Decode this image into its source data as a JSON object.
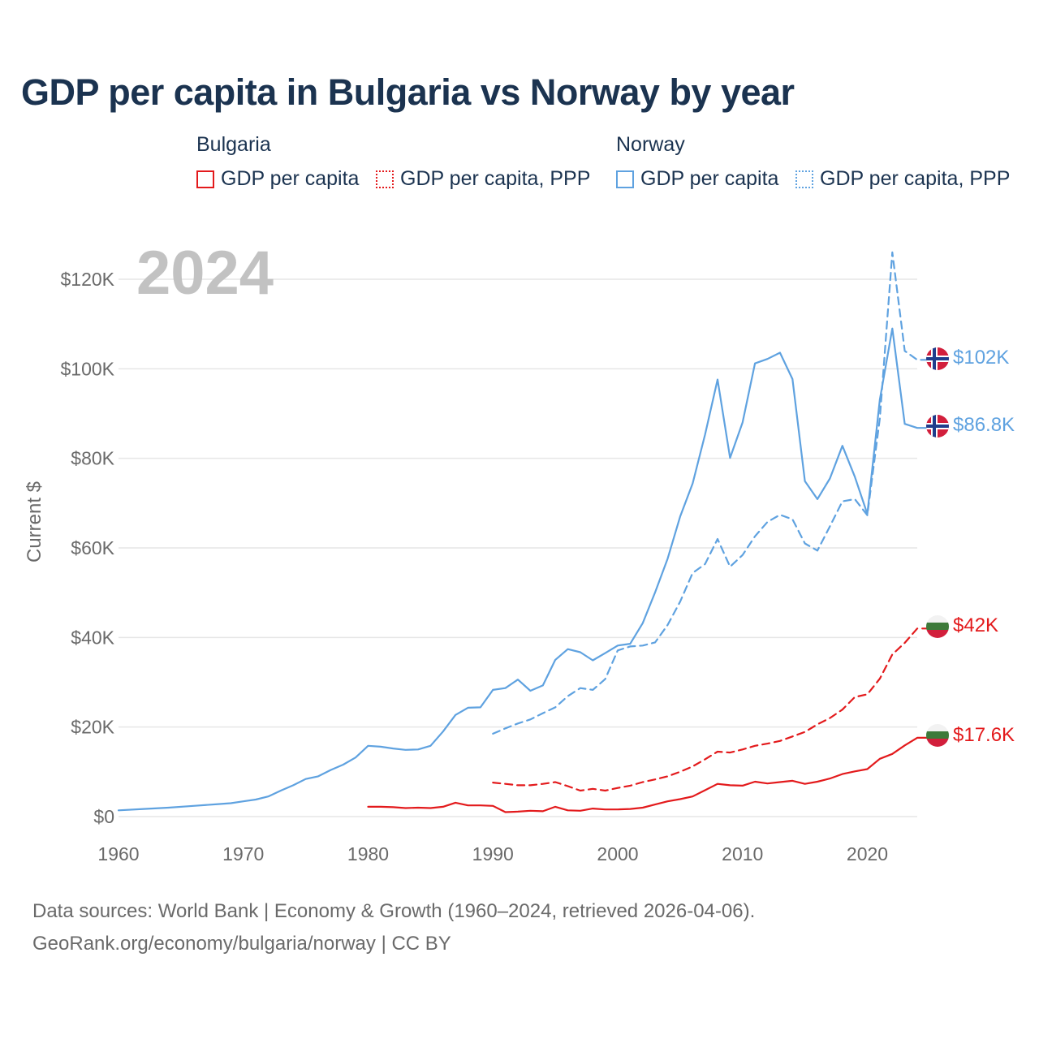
{
  "title": "GDP per capita in Bulgaria vs Norway by year",
  "legend": {
    "bulgaria": {
      "heading": "Bulgaria",
      "gdp": "GDP per capita",
      "ppp": "GDP per capita, PPP"
    },
    "norway": {
      "heading": "Norway",
      "gdp": "GDP per capita",
      "ppp": "GDP per capita, PPP"
    }
  },
  "colors": {
    "bulgaria": "#e31a1c",
    "norway": "#5fa2e0",
    "text": "#1b3350",
    "grid": "#e6e6e6"
  },
  "footer": {
    "line1": "Data sources: World Bank | Economy & Growth (1960–2024, retrieved 2026-04-06).",
    "line2": "GeoRank.org/economy/bulgaria/norway | CC BY"
  },
  "chart_data": {
    "type": "line",
    "title": "GDP per capita in Bulgaria vs Norway by year",
    "year_label": "2024",
    "ylabel": "Current $",
    "xlabel": "",
    "xlim": [
      1960,
      2024
    ],
    "ylim": [
      0,
      125000
    ],
    "x_ticks": [
      1960,
      1970,
      1980,
      1990,
      2000,
      2010,
      2020
    ],
    "y_ticks": [
      {
        "value": 0,
        "label": "$0"
      },
      {
        "value": 20000,
        "label": "$20K"
      },
      {
        "value": 40000,
        "label": "$40K"
      },
      {
        "value": 60000,
        "label": "$60K"
      },
      {
        "value": 80000,
        "label": "$80K"
      },
      {
        "value": 100000,
        "label": "$100K"
      },
      {
        "value": 120000,
        "label": "$120K"
      }
    ],
    "series": [
      {
        "name": "Norway GDP per capita",
        "country": "norway",
        "dash": "solid",
        "end_label": "$86.8K",
        "x": [
          1960,
          1962,
          1964,
          1966,
          1968,
          1969,
          1970,
          1971,
          1972,
          1973,
          1974,
          1975,
          1976,
          1977,
          1978,
          1979,
          1980,
          1981,
          1982,
          1983,
          1984,
          1985,
          1986,
          1987,
          1988,
          1989,
          1990,
          1991,
          1992,
          1993,
          1994,
          1995,
          1996,
          1997,
          1998,
          1999,
          2000,
          2001,
          2002,
          2003,
          2004,
          2005,
          2006,
          2007,
          2008,
          2009,
          2010,
          2011,
          2012,
          2013,
          2014,
          2015,
          2016,
          2017,
          2018,
          2019,
          2020,
          2021,
          2022,
          2023,
          2024
        ],
        "values": [
          1400,
          1700,
          2000,
          2400,
          2800,
          3000,
          3400,
          3800,
          4500,
          5800,
          7000,
          8400,
          9000,
          10400,
          11600,
          13200,
          15800,
          15600,
          15200,
          14900,
          15000,
          15800,
          19000,
          22700,
          24300,
          24400,
          28300,
          28700,
          30600,
          28100,
          29300,
          35000,
          37400,
          36700,
          34900,
          36500,
          38200,
          38600,
          43200,
          50100,
          57600,
          67000,
          74400,
          85300,
          97600,
          80100,
          88000,
          101200,
          102200,
          103600,
          97700,
          74900,
          70900,
          75500,
          82800,
          75900,
          67600,
          93100,
          109000,
          87700,
          86800
        ]
      },
      {
        "name": "Norway GDP per capita, PPP",
        "country": "norway",
        "dash": "dashed",
        "end_label": "$102K",
        "x": [
          1990,
          1991,
          1992,
          1993,
          1994,
          1995,
          1996,
          1997,
          1998,
          1999,
          2000,
          2001,
          2002,
          2003,
          2004,
          2005,
          2006,
          2007,
          2008,
          2009,
          2010,
          2011,
          2012,
          2013,
          2014,
          2015,
          2016,
          2017,
          2018,
          2019,
          2020,
          2021,
          2022,
          2023,
          2024
        ],
        "values": [
          18500,
          19700,
          20800,
          21700,
          23100,
          24400,
          26900,
          28700,
          28300,
          30700,
          37100,
          38000,
          38200,
          38900,
          42800,
          48000,
          54400,
          56400,
          62000,
          55800,
          58400,
          62600,
          65800,
          67400,
          66400,
          61000,
          59400,
          64800,
          70400,
          70900,
          67300,
          88900,
          126000,
          104000,
          102000
        ]
      },
      {
        "name": "Bulgaria GDP per capita",
        "country": "bulgaria",
        "dash": "solid",
        "end_label": "$17.6K",
        "x": [
          1980,
          1981,
          1982,
          1983,
          1984,
          1985,
          1986,
          1987,
          1988,
          1989,
          1990,
          1991,
          1992,
          1993,
          1994,
          1995,
          1996,
          1997,
          1998,
          1999,
          2000,
          2001,
          2002,
          2003,
          2004,
          2005,
          2006,
          2007,
          2008,
          2009,
          2010,
          2011,
          2012,
          2013,
          2014,
          2015,
          2016,
          2017,
          2018,
          2019,
          2020,
          2021,
          2022,
          2023,
          2024
        ],
        "values": [
          2200,
          2200,
          2100,
          1900,
          2000,
          1900,
          2200,
          3100,
          2500,
          2500,
          2400,
          1000,
          1100,
          1300,
          1200,
          2200,
          1400,
          1300,
          1800,
          1600,
          1600,
          1700,
          2000,
          2700,
          3400,
          3900,
          4500,
          5900,
          7300,
          7000,
          6900,
          7800,
          7400,
          7700,
          8000,
          7300,
          7800,
          8500,
          9500,
          10100,
          10600,
          12900,
          14000,
          15900,
          17600
        ]
      },
      {
        "name": "Bulgaria GDP per capita, PPP",
        "country": "bulgaria",
        "dash": "dashed",
        "end_label": "$42K",
        "x": [
          1990,
          1991,
          1992,
          1993,
          1994,
          1995,
          1996,
          1997,
          1998,
          1999,
          2000,
          2001,
          2002,
          2003,
          2004,
          2005,
          2006,
          2007,
          2008,
          2009,
          2010,
          2011,
          2012,
          2013,
          2014,
          2015,
          2016,
          2017,
          2018,
          2019,
          2020,
          2021,
          2022,
          2023,
          2024
        ],
        "values": [
          7600,
          7300,
          7000,
          7000,
          7300,
          7700,
          6800,
          5800,
          6200,
          5800,
          6400,
          6900,
          7700,
          8300,
          9000,
          10000,
          11200,
          12800,
          14500,
          14300,
          15000,
          15800,
          16300,
          16900,
          17900,
          18900,
          20600,
          22000,
          23900,
          26700,
          27300,
          30800,
          36200,
          38800,
          42000
        ]
      }
    ]
  }
}
